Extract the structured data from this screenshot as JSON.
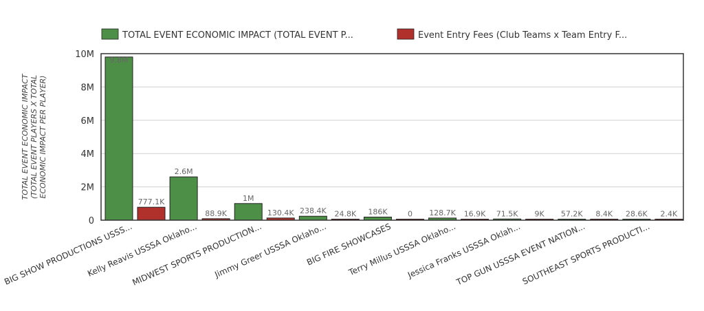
{
  "chart_data": {
    "type": "bar",
    "title": "",
    "xlabel": "",
    "ylabel_lines": [
      "TOTAL EVENT ECONOMIC IMPACT",
      "(TOTAL EVENT PLAYERS X TOTAL",
      "ECONOMIC IMPACT PER PLAYER)"
    ],
    "ylim": [
      0,
      10000000
    ],
    "y_ticks": [
      0,
      2000000,
      4000000,
      6000000,
      8000000,
      10000000
    ],
    "y_tick_labels": [
      "0",
      "2M",
      "4M",
      "6M",
      "8M",
      "10M"
    ],
    "grid": true,
    "legend_position": "top",
    "categories": [
      "BIG SHOW PRODUCTIONS USSS...",
      "Kelly Reavis USSSA Oklaho...",
      "MIDWEST SPORTS PRODUCTION...",
      "Jimmy Greer USSSA Oklaho...",
      "BIG FIRE SHOWCASES",
      "Terry Millus USSSA Oklaho...",
      "Jessica Franks USSSA Oklah...",
      "TOP GUN USSSA EVENT NATION...",
      "SOUTHEAST SPORTS PRODUCTI..."
    ],
    "series": [
      {
        "name": "TOTAL EVENT ECONOMIC IMPACT (TOTAL EVENT P...",
        "color": "#4e8f47",
        "values": [
          9800000,
          2600000,
          1000000,
          238400,
          186000,
          128700,
          71500,
          57200,
          28600
        ],
        "labels": [
          "9.8M",
          "2.6M",
          "1M",
          "238.4K",
          "186K",
          "128.7K",
          "71.5K",
          "57.2K",
          "28.6K"
        ]
      },
      {
        "name": "Event Entry Fees (Club Teams x Team Entry F...",
        "color": "#b0302c",
        "values": [
          777100,
          88900,
          130400,
          24800,
          0,
          16900,
          9000,
          8400,
          2400
        ],
        "labels": [
          "777.1K",
          "88.9K",
          "130.4K",
          "24.8K",
          "0",
          "16.9K",
          "9K",
          "8.4K",
          "2.4K"
        ]
      }
    ]
  }
}
